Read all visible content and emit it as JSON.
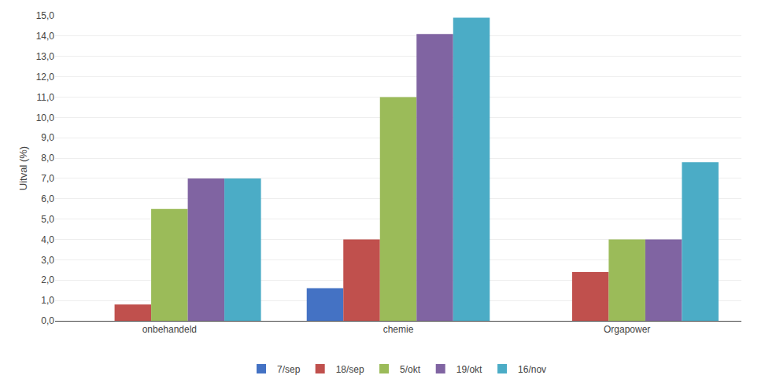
{
  "chart_data": {
    "type": "bar",
    "categories": [
      "onbehandeld",
      "chemie",
      "Orgapower"
    ],
    "series": [
      {
        "name": "7/sep",
        "color": "#4472C4",
        "values": [
          0.0,
          1.6,
          0.0
        ]
      },
      {
        "name": "18/sep",
        "color": "#C0504D",
        "values": [
          0.8,
          4.0,
          2.4
        ]
      },
      {
        "name": "5/okt",
        "color": "#9BBB59",
        "values": [
          5.5,
          11.0,
          4.0
        ]
      },
      {
        "name": "19/okt",
        "color": "#8064A2",
        "values": [
          7.0,
          14.1,
          4.0
        ]
      },
      {
        "name": "16/nov",
        "color": "#4BACC6",
        "values": [
          7.0,
          14.9,
          7.8
        ]
      }
    ],
    "ylabel": "Uitval (%)",
    "ylim": [
      0,
      15.0
    ],
    "yticks": [
      {
        "value": 0.0,
        "label": "0,0"
      },
      {
        "value": 1.0,
        "label": "1,0"
      },
      {
        "value": 2.0,
        "label": "2,0"
      },
      {
        "value": 3.0,
        "label": "3,0"
      },
      {
        "value": 4.0,
        "label": "4,0"
      },
      {
        "value": 5.0,
        "label": "5,0"
      },
      {
        "value": 6.0,
        "label": "6,0"
      },
      {
        "value": 7.0,
        "label": "7,0"
      },
      {
        "value": 8.0,
        "label": "8,0"
      },
      {
        "value": 9.0,
        "label": "9,0"
      },
      {
        "value": 10.0,
        "label": "10,0"
      },
      {
        "value": 11.0,
        "label": "11,0"
      },
      {
        "value": 12.0,
        "label": "12,0"
      },
      {
        "value": 13.0,
        "label": "13,0"
      },
      {
        "value": 14.0,
        "label": "14,0"
      },
      {
        "value": 15.0,
        "label": "15,0"
      }
    ],
    "grid": true,
    "legend": "bottom"
  }
}
